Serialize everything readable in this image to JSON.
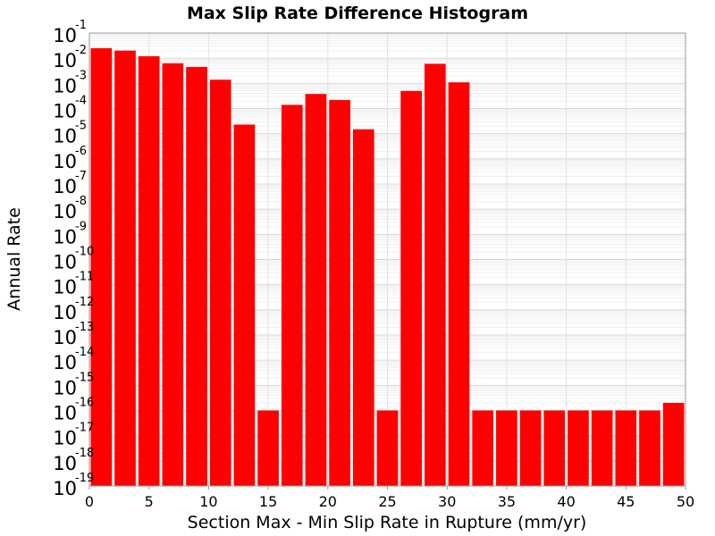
{
  "chart_data": {
    "type": "bar",
    "title": "Max Slip Rate Difference Histogram",
    "xlabel": "Section Max - Min Slip Rate in Rupture (mm/yr)",
    "ylabel": "Annual Rate",
    "xlim": [
      0,
      50
    ],
    "ylim": [
      1e-19,
      0.1
    ],
    "y_scale": "log",
    "grid": true,
    "bar_color": "#ff0000",
    "xticks": [
      "0",
      "5",
      "10",
      "15",
      "20",
      "25",
      "30",
      "35",
      "40",
      "45",
      "50"
    ],
    "ytick_base": "10",
    "ytick_exponents": [
      "-19",
      "-18",
      "-17",
      "-16",
      "-15",
      "-14",
      "-13",
      "-12",
      "-11",
      "-10",
      "-9",
      "-8",
      "-7",
      "-6",
      "-5",
      "-4",
      "-3",
      "-2",
      "-1"
    ],
    "bin_width": 2,
    "x": [
      1,
      3,
      5,
      7,
      9,
      11,
      13,
      15,
      17,
      19,
      21,
      23,
      25,
      27,
      29,
      31,
      33,
      35,
      37,
      39,
      41,
      43,
      45,
      47,
      49
    ],
    "values": [
      0.025,
      0.02,
      0.012,
      0.0063,
      0.0045,
      0.0014,
      2.3e-05,
      1e-16,
      0.00014,
      0.00038,
      0.00022,
      1.5e-05,
      1e-16,
      0.0005,
      0.006,
      0.0011,
      1e-16,
      1e-16,
      1e-16,
      1e-16,
      1e-16,
      1e-16,
      1e-16,
      1e-16,
      2e-16
    ]
  }
}
